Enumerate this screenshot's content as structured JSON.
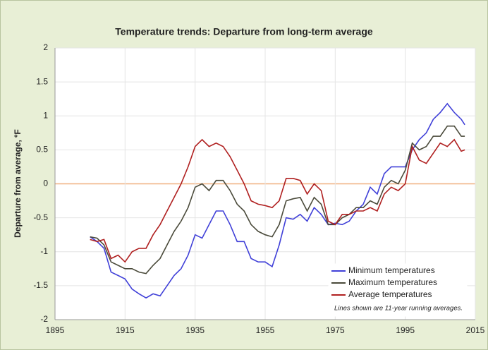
{
  "chart_data": {
    "type": "line",
    "title": "Temperature trends: Departure from long-term average",
    "y_label": "Departure from average, ºF",
    "annotation": "Lines shown are 11-year running averages.",
    "x": [
      1905,
      1907,
      1909,
      1911,
      1913,
      1915,
      1917,
      1919,
      1921,
      1923,
      1925,
      1927,
      1929,
      1931,
      1933,
      1935,
      1937,
      1939,
      1941,
      1943,
      1945,
      1947,
      1949,
      1951,
      1953,
      1955,
      1957,
      1959,
      1961,
      1963,
      1965,
      1967,
      1969,
      1971,
      1973,
      1975,
      1977,
      1979,
      1981,
      1983,
      1985,
      1987,
      1989,
      1991,
      1993,
      1995,
      1997,
      1999,
      2001,
      2003,
      2005,
      2007,
      2009,
      2011,
      2012
    ],
    "series": [
      {
        "name": "Minimum temperatures",
        "color": "#4040d8",
        "values": [
          -0.78,
          -0.85,
          -0.95,
          -1.3,
          -1.35,
          -1.4,
          -1.55,
          -1.62,
          -1.68,
          -1.62,
          -1.65,
          -1.5,
          -1.35,
          -1.25,
          -1.05,
          -0.75,
          -0.8,
          -0.6,
          -0.4,
          -0.4,
          -0.6,
          -0.85,
          -0.85,
          -1.1,
          -1.15,
          -1.15,
          -1.22,
          -0.9,
          -0.5,
          -0.52,
          -0.45,
          -0.55,
          -0.35,
          -0.45,
          -0.6,
          -0.58,
          -0.6,
          -0.55,
          -0.4,
          -0.3,
          -0.05,
          -0.15,
          0.15,
          0.25,
          0.25,
          0.25,
          0.5,
          0.65,
          0.75,
          0.95,
          1.05,
          1.18,
          1.05,
          0.95,
          0.87
        ]
      },
      {
        "name": "Maximum temperatures",
        "color": "#4a4a3a",
        "values": [
          -0.78,
          -0.8,
          -0.9,
          -1.15,
          -1.2,
          -1.25,
          -1.25,
          -1.3,
          -1.32,
          -1.2,
          -1.1,
          -0.9,
          -0.7,
          -0.55,
          -0.35,
          -0.05,
          0.0,
          -0.1,
          0.05,
          0.05,
          -0.1,
          -0.3,
          -0.4,
          -0.6,
          -0.7,
          -0.75,
          -0.78,
          -0.6,
          -0.25,
          -0.22,
          -0.2,
          -0.4,
          -0.2,
          -0.3,
          -0.6,
          -0.6,
          -0.5,
          -0.45,
          -0.35,
          -0.35,
          -0.25,
          -0.3,
          -0.05,
          0.05,
          0.0,
          0.2,
          0.6,
          0.5,
          0.55,
          0.7,
          0.7,
          0.85,
          0.85,
          0.7,
          0.7
        ]
      },
      {
        "name": "Average temperatures",
        "color": "#b02020",
        "values": [
          -0.82,
          -0.85,
          -0.82,
          -1.1,
          -1.05,
          -1.15,
          -1.0,
          -0.95,
          -0.95,
          -0.75,
          -0.6,
          -0.4,
          -0.2,
          0.0,
          0.25,
          0.55,
          0.65,
          0.55,
          0.6,
          0.55,
          0.4,
          0.2,
          0.0,
          -0.25,
          -0.3,
          -0.32,
          -0.35,
          -0.25,
          0.08,
          0.08,
          0.05,
          -0.15,
          0.0,
          -0.1,
          -0.55,
          -0.6,
          -0.45,
          -0.45,
          -0.4,
          -0.4,
          -0.35,
          -0.4,
          -0.15,
          -0.05,
          -0.1,
          0.0,
          0.55,
          0.35,
          0.3,
          0.45,
          0.6,
          0.55,
          0.65,
          0.48,
          0.5
        ]
      }
    ],
    "xlim": [
      1895,
      2015
    ],
    "xticks": [
      1895,
      1915,
      1935,
      1955,
      1975,
      1995,
      2015
    ],
    "ylim": [
      -2,
      2
    ],
    "yticks": [
      -2,
      -1.5,
      -1,
      -0.5,
      0,
      0.5,
      1,
      1.5,
      2
    ],
    "grid": true,
    "zero_line_color": "#f0b080",
    "legend": "lower right"
  }
}
